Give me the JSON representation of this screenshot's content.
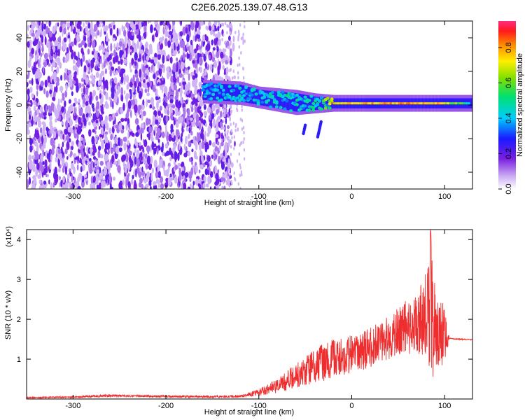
{
  "title": "C2E6.2025.139.07.48.G13",
  "chart_data": [
    {
      "type": "heatmap",
      "xlabel": "Height of straight line (km)",
      "ylabel": "Frequency (Hz)",
      "xlim": [
        -350,
        130
      ],
      "ylim": [
        -50,
        50
      ],
      "xticks": [
        -300,
        -200,
        -100,
        0,
        100
      ],
      "yticks": [
        -40,
        -20,
        0,
        20,
        40
      ],
      "colorbar": {
        "label": "Normalized spectral amplitude",
        "range": [
          0,
          0.95
        ],
        "ticks": [
          0.0,
          0.2,
          0.4,
          0.6,
          0.8
        ]
      },
      "noise_region": {
        "x": [
          -350,
          -130
        ],
        "y": [
          -50,
          50
        ]
      },
      "signal_band": [
        {
          "x": -160,
          "f_low": 3,
          "f_high": 13,
          "peak": 0.4
        },
        {
          "x": -120,
          "f_low": 2,
          "f_high": 12,
          "peak": 0.45
        },
        {
          "x": -100,
          "f_low": 0,
          "f_high": 9,
          "peak": 0.45
        },
        {
          "x": -80,
          "f_low": -2,
          "f_high": 8,
          "peak": 0.5
        },
        {
          "x": -60,
          "f_low": -4,
          "f_high": 7,
          "peak": 0.5
        },
        {
          "x": -40,
          "f_low": -3,
          "f_high": 5,
          "peak": 0.5
        },
        {
          "x": -20,
          "f_low": -2,
          "f_high": 4,
          "peak": 0.85
        },
        {
          "x": 0,
          "f_low": -2,
          "f_high": 4,
          "peak": 0.85
        },
        {
          "x": 50,
          "f_low": -2,
          "f_high": 4,
          "peak": 0.9
        },
        {
          "x": 100,
          "f_low": -2,
          "f_high": 4,
          "peak": 0.85
        },
        {
          "x": 130,
          "f_low": -2,
          "f_high": 4,
          "peak": 0.5
        }
      ]
    },
    {
      "type": "line",
      "xlabel": "Height of straight line (km)",
      "ylabel": "SNR (10 * v/v)",
      "scale_label": "(x10⁴)",
      "xlim": [
        -350,
        130
      ],
      "ylim": [
        0,
        4.25
      ],
      "xticks": [
        -300,
        -200,
        -100,
        0,
        100
      ],
      "yticks": [
        1,
        2,
        3,
        4
      ],
      "color": "#ee2e2e",
      "envelope": {
        "x": [
          -350,
          -300,
          -260,
          -240,
          -200,
          -150,
          -120,
          -100,
          -80,
          -60,
          -40,
          -20,
          0,
          20,
          40,
          60,
          70,
          80,
          85,
          90,
          100,
          105,
          130
        ],
        "low": [
          0.02,
          0.03,
          0.05,
          0.05,
          0.04,
          0.03,
          0.04,
          0.08,
          0.15,
          0.25,
          0.4,
          0.5,
          0.6,
          0.8,
          1.0,
          1.1,
          1.1,
          0.9,
          0.5,
          0.6,
          0.8,
          1.5,
          1.47
        ],
        "high": [
          0.05,
          0.07,
          0.12,
          0.1,
          0.09,
          0.08,
          0.1,
          0.25,
          0.5,
          0.9,
          1.3,
          1.5,
          1.6,
          1.8,
          2.1,
          2.5,
          2.6,
          3.2,
          4.25,
          2.8,
          2.4,
          1.53,
          1.5
        ]
      }
    }
  ]
}
